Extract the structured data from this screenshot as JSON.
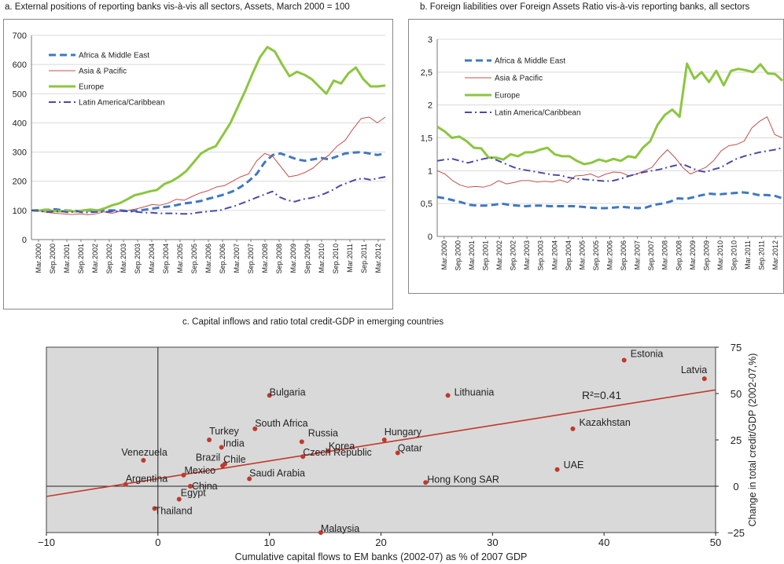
{
  "chart_data": [
    {
      "type": "line",
      "title": "a. External positions of reporting banks vis-à-vis all sectors, Assets, March 2000 = 100",
      "ylim": [
        0,
        700
      ],
      "yticks": [
        0,
        100,
        200,
        300,
        400,
        500,
        600,
        700
      ],
      "legend_position": "top-left",
      "tick_labels": [
        "Mar.2000",
        "Sep.2000",
        "Mar.2001",
        "Sep.2001",
        "Mar.2002",
        "Sep.2002",
        "Mar.2003",
        "Sep.2003",
        "Mar.2004",
        "Sep.2004",
        "Mar.2005",
        "Sep.2005",
        "Mar.2006",
        "Sep.2006",
        "Mar.2007",
        "Sep.2007",
        "Mar.2008",
        "Sep.2008",
        "Mar.2009",
        "Sep.2009",
        "Mar.2010",
        "Sep.2010",
        "Mar.2011",
        "Sep.2011",
        "Mar.2012"
      ],
      "series": [
        {
          "name": "Africa & Middle East",
          "style": "dashed",
          "color": "#3f78c0",
          "values": [
            100,
            101,
            102,
            104,
            100,
            99,
            98,
            100,
            100,
            101,
            100,
            100,
            98,
            99,
            102,
            106,
            110,
            113,
            118,
            124,
            127,
            132,
            140,
            147,
            155,
            165,
            180,
            200,
            225,
            265,
            290,
            295,
            285,
            275,
            270,
            275,
            280,
            275,
            285,
            295,
            298,
            300,
            295,
            290,
            295
          ]
        },
        {
          "name": "Asia & Pacific",
          "style": "thin",
          "color": "#c0504d",
          "values": [
            100,
            98,
            93,
            90,
            88,
            86,
            88,
            85,
            88,
            95,
            90,
            97,
            100,
            105,
            112,
            120,
            118,
            125,
            138,
            135,
            148,
            160,
            168,
            180,
            185,
            200,
            215,
            225,
            270,
            295,
            285,
            250,
            215,
            220,
            230,
            245,
            270,
            290,
            320,
            340,
            380,
            415,
            420,
            400,
            420
          ]
        },
        {
          "name": "Europe",
          "style": "thick",
          "color": "#8cc63f",
          "values": [
            100,
            99,
            103,
            98,
            97,
            99,
            96,
            100,
            103,
            100,
            108,
            118,
            125,
            138,
            152,
            158,
            165,
            170,
            190,
            200,
            215,
            235,
            265,
            295,
            310,
            320,
            360,
            400,
            455,
            510,
            570,
            625,
            660,
            645,
            600,
            560,
            575,
            565,
            550,
            525,
            500,
            545,
            535,
            570,
            590,
            550,
            525,
            525,
            528
          ]
        },
        {
          "name": "Latin America/Caribbean",
          "style": "dashdot",
          "color": "#4a4aa8",
          "values": [
            100,
            98,
            95,
            96,
            97,
            93,
            97,
            92,
            94,
            95,
            95,
            97,
            98,
            96,
            95,
            92,
            92,
            90,
            90,
            90,
            88,
            88,
            92,
            95,
            98,
            100,
            108,
            115,
            125,
            135,
            145,
            155,
            165,
            145,
            135,
            130,
            138,
            142,
            148,
            158,
            170,
            185,
            195,
            205,
            210,
            205,
            210,
            215
          ]
        }
      ]
    },
    {
      "type": "line",
      "title": "b. Foreign liabilities over Foreign Assets Ratio vis-à-vis reporting banks, all sectors",
      "ylim": [
        0,
        3
      ],
      "yticks": [
        "0",
        "0,5",
        "1",
        "1,5",
        "2",
        "2,5",
        "3"
      ],
      "legend_position": "top-left",
      "tick_labels": [
        "Mar.2000",
        "Sep.2000",
        "Mar.2001",
        "Sep.2001",
        "Mar.2002",
        "Sep.2002",
        "Mar.2003",
        "Sep.2003",
        "Mar.2004",
        "Sep.2004",
        "Mar.2005",
        "Sep.2005",
        "Mar.2006",
        "Sep.2006",
        "Mar.2007",
        "Sep.2007",
        "Mar.2008",
        "Sep.2008",
        "Mar.2009",
        "Sep.2009",
        "Mar.2010",
        "Sep.2010",
        "Mar.2011",
        "Sep.2011",
        "Mar.2012"
      ],
      "series": [
        {
          "name": "Africa & Middle East",
          "style": "dashed",
          "color": "#3f78c0",
          "values": [
            0.6,
            0.58,
            0.55,
            0.52,
            0.48,
            0.47,
            0.47,
            0.48,
            0.5,
            0.48,
            0.47,
            0.46,
            0.47,
            0.47,
            0.46,
            0.46,
            0.46,
            0.46,
            0.45,
            0.44,
            0.43,
            0.43,
            0.44,
            0.45,
            0.44,
            0.43,
            0.44,
            0.48,
            0.5,
            0.53,
            0.58,
            0.57,
            0.6,
            0.63,
            0.65,
            0.64,
            0.65,
            0.66,
            0.67,
            0.66,
            0.63,
            0.63,
            0.62,
            0.58
          ]
        },
        {
          "name": "Asia & Pacific",
          "style": "thin",
          "color": "#c0504d",
          "values": [
            1.0,
            0.95,
            0.85,
            0.78,
            0.75,
            0.76,
            0.75,
            0.78,
            0.85,
            0.8,
            0.82,
            0.85,
            0.85,
            0.83,
            0.84,
            0.83,
            0.86,
            0.82,
            0.92,
            0.93,
            0.95,
            0.9,
            0.95,
            0.98,
            0.97,
            0.92,
            0.95,
            1.0,
            1.05,
            1.2,
            1.32,
            1.2,
            1.05,
            0.95,
            1.0,
            1.05,
            1.15,
            1.3,
            1.38,
            1.4,
            1.45,
            1.65,
            1.75,
            1.82,
            1.55,
            1.5
          ]
        },
        {
          "name": "Europe",
          "style": "thick",
          "color": "#8cc63f",
          "values": [
            1.67,
            1.6,
            1.5,
            1.52,
            1.45,
            1.35,
            1.34,
            1.2,
            1.2,
            1.17,
            1.25,
            1.22,
            1.28,
            1.28,
            1.32,
            1.35,
            1.25,
            1.22,
            1.22,
            1.15,
            1.1,
            1.12,
            1.17,
            1.14,
            1.18,
            1.15,
            1.22,
            1.2,
            1.35,
            1.45,
            1.7,
            1.85,
            1.93,
            1.82,
            2.63,
            2.4,
            2.5,
            2.35,
            2.52,
            2.3,
            2.52,
            2.55,
            2.53,
            2.5,
            2.62,
            2.48,
            2.47,
            2.37
          ]
        },
        {
          "name": "Latin America/Caribbean",
          "style": "dashdot",
          "color": "#4a4aa8",
          "values": [
            1.15,
            1.17,
            1.18,
            1.15,
            1.12,
            1.15,
            1.18,
            1.2,
            1.15,
            1.1,
            1.05,
            1.02,
            1.0,
            0.98,
            0.96,
            0.94,
            0.93,
            0.9,
            0.88,
            0.87,
            0.86,
            0.85,
            0.84,
            0.85,
            0.88,
            0.92,
            0.95,
            0.98,
            1.0,
            1.02,
            1.05,
            1.08,
            1.1,
            1.05,
            1.0,
            0.98,
            1.02,
            1.05,
            1.12,
            1.18,
            1.22,
            1.25,
            1.28,
            1.3,
            1.32,
            1.35
          ]
        }
      ]
    },
    {
      "type": "scatter",
      "title": "c. Capital inflows and ratio total  credit-GDP in emerging countries",
      "xlabel": "Cumulative capital flows to EM banks  (2002-07) as % of 2007 GDP",
      "ylabel": "Change in total credit/GDP (2002-07,%)",
      "xlim": [
        -10,
        50
      ],
      "ylim": [
        -25,
        75
      ],
      "xticks": [
        "−10",
        "0",
        "10",
        "20",
        "30",
        "40",
        "50"
      ],
      "yticks": [
        "−25",
        "0",
        "25",
        "50",
        "75"
      ],
      "annotation": "R²=0.41",
      "grid": false,
      "trendline": {
        "x": [
          -10,
          50
        ],
        "y": [
          -5.5,
          52
        ]
      },
      "points": [
        {
          "label": "Estonia",
          "x": 41.8,
          "y": 68
        },
        {
          "label": "Latvia",
          "x": 49.0,
          "y": 58
        },
        {
          "label": "Lithuania",
          "x": 26.0,
          "y": 49
        },
        {
          "label": "Bulgaria",
          "x": 10.0,
          "y": 49
        },
        {
          "label": "Kazakhstan",
          "x": 37.2,
          "y": 31
        },
        {
          "label": "South Africa",
          "x": 8.7,
          "y": 31
        },
        {
          "label": "Turkey",
          "x": 4.6,
          "y": 25
        },
        {
          "label": "Russia",
          "x": 12.9,
          "y": 24
        },
        {
          "label": "India",
          "x": 5.7,
          "y": 21
        },
        {
          "label": "Hungary",
          "x": 20.3,
          "y": 25
        },
        {
          "label": "Korea",
          "x": 15.3,
          "y": 19
        },
        {
          "label": "Czech Republic",
          "x": 13.0,
          "y": 16
        },
        {
          "label": "Qatar",
          "x": 21.5,
          "y": 18
        },
        {
          "label": "Venezuela",
          "x": -1.3,
          "y": 14
        },
        {
          "label": "Brazil",
          "x": 6.0,
          "y": 12
        },
        {
          "label": "Chile",
          "x": 5.8,
          "y": 11
        },
        {
          "label": "UAE",
          "x": 35.8,
          "y": 9
        },
        {
          "label": "Mexico",
          "x": 2.3,
          "y": 6
        },
        {
          "label": "Saudi Arabia",
          "x": 8.2,
          "y": 4
        },
        {
          "label": "Hong Kong SAR",
          "x": 24.0,
          "y": 2
        },
        {
          "label": "Argentina",
          "x": -2.9,
          "y": 1
        },
        {
          "label": "China",
          "x": 2.9,
          "y": 0
        },
        {
          "label": "Egypt",
          "x": 1.9,
          "y": -7
        },
        {
          "label": "Thailand",
          "x": -0.3,
          "y": -12
        },
        {
          "label": "Malaysia",
          "x": 14.6,
          "y": -25
        }
      ]
    }
  ]
}
